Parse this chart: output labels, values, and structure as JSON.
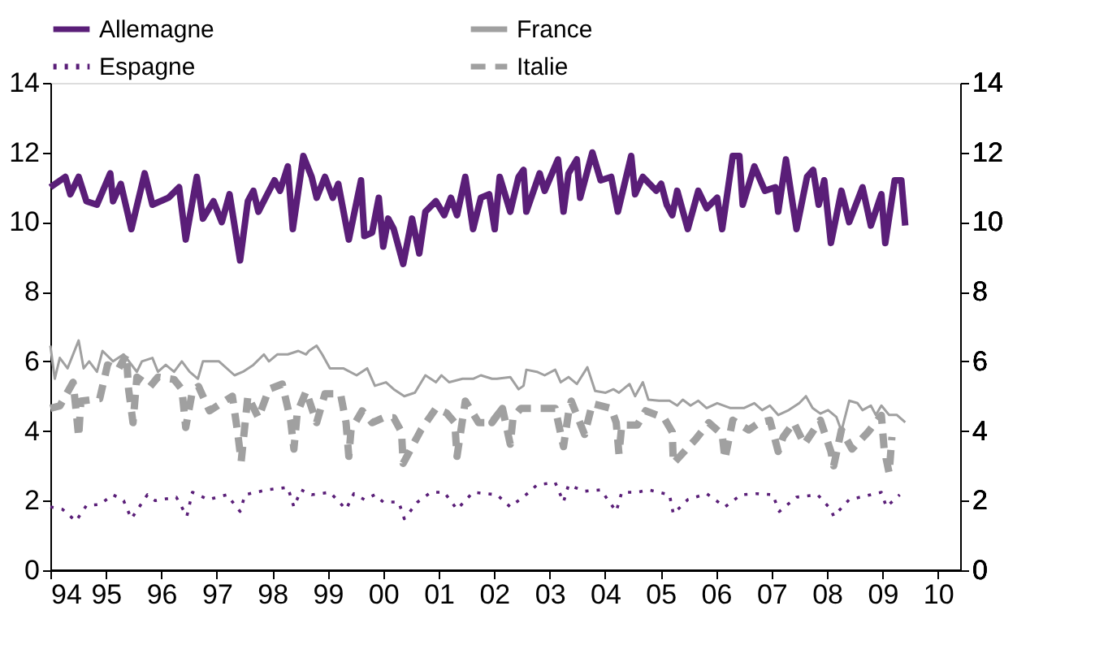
{
  "chart_data": {
    "type": "line",
    "xlim": [
      1994,
      2010.4
    ],
    "xticks": [
      {
        "value": 1994,
        "label": "94"
      },
      {
        "value": 1995,
        "label": "95"
      },
      {
        "value": 1996,
        "label": "96"
      },
      {
        "value": 1997,
        "label": "97"
      },
      {
        "value": 1998,
        "label": "98"
      },
      {
        "value": 1999,
        "label": "99"
      },
      {
        "value": 2000,
        "label": "00"
      },
      {
        "value": 2001,
        "label": "01"
      },
      {
        "value": 2002,
        "label": "02"
      },
      {
        "value": 2003,
        "label": "03"
      },
      {
        "value": 2004,
        "label": "04"
      },
      {
        "value": 2005,
        "label": "05"
      },
      {
        "value": 2006,
        "label": "06"
      },
      {
        "value": 2007,
        "label": "07"
      },
      {
        "value": 2008,
        "label": "08"
      },
      {
        "value": 2009,
        "label": "09"
      },
      {
        "value": 2010,
        "label": "10"
      }
    ],
    "ylim": [
      0,
      14
    ],
    "yticks": [
      0,
      2,
      4,
      6,
      8,
      10,
      12,
      14
    ],
    "y2lim": [
      0,
      14
    ],
    "y2ticks": [
      0,
      2,
      4,
      6,
      8,
      10,
      12,
      14
    ],
    "grid": false,
    "legend": "top",
    "marker": "none",
    "series": [
      {
        "name": "Allemagne",
        "color": "#5a1e78",
        "line_style": "solid",
        "x": [
          1994.0,
          1994.27,
          1994.36,
          1994.51,
          1994.65,
          1994.84,
          1995.08,
          1995.13,
          1995.27,
          1995.46,
          1995.7,
          1995.84,
          1996.13,
          1996.32,
          1996.44,
          1996.64,
          1996.75,
          1996.94,
          1997.09,
          1997.23,
          1997.42,
          1997.56,
          1997.66,
          1997.75,
          1998.04,
          1998.14,
          1998.28,
          1998.37,
          1998.56,
          1998.71,
          1998.8,
          1998.95,
          1999.09,
          1999.19,
          1999.38,
          1999.6,
          1999.66,
          1999.8,
          1999.92,
          2000.0,
          2000.09,
          2000.19,
          2000.36,
          2000.52,
          2000.65,
          2000.76,
          2000.95,
          2001.1,
          2001.22,
          2001.33,
          2001.48,
          2001.62,
          2001.76,
          2001.91,
          2002.01,
          2002.1,
          2002.29,
          2002.44,
          2002.53,
          2002.58,
          2002.82,
          2002.91,
          2003.15,
          2003.25,
          2003.34,
          2003.49,
          2003.55,
          2003.77,
          2003.92,
          2004.11,
          2004.23,
          2004.47,
          2004.54,
          2004.68,
          2004.92,
          2005.01,
          2005.11,
          2005.21,
          2005.3,
          2005.49,
          2005.68,
          2005.83,
          2006.02,
          2006.11,
          2006.3,
          2006.42,
          2006.48,
          2006.69,
          2006.88,
          2007.07,
          2007.12,
          2007.26,
          2007.45,
          2007.64,
          2007.75,
          2007.85,
          2007.95,
          2008.07,
          2008.26,
          2008.4,
          2008.64,
          2008.79,
          2008.98,
          2009.05,
          2009.22,
          2009.34,
          2009.41
        ],
        "values": [
          11.0,
          11.3,
          10.8,
          11.3,
          10.6,
          10.5,
          11.4,
          10.6,
          11.1,
          9.8,
          11.4,
          10.5,
          10.7,
          11.0,
          9.5,
          11.3,
          10.1,
          10.6,
          10.0,
          10.8,
          8.9,
          10.6,
          10.9,
          10.3,
          11.2,
          10.9,
          11.6,
          9.8,
          11.9,
          11.3,
          10.7,
          11.3,
          10.7,
          11.1,
          9.5,
          11.2,
          9.6,
          9.7,
          10.7,
          9.3,
          10.1,
          9.8,
          8.8,
          10.1,
          9.1,
          10.3,
          10.6,
          10.2,
          10.7,
          10.2,
          11.3,
          9.8,
          10.7,
          10.8,
          9.8,
          11.3,
          10.3,
          11.3,
          11.5,
          10.3,
          11.4,
          10.9,
          11.8,
          10.3,
          11.4,
          11.8,
          10.7,
          12.0,
          11.2,
          11.3,
          10.3,
          11.9,
          10.8,
          11.3,
          10.9,
          11.1,
          10.5,
          10.2,
          10.9,
          9.8,
          10.9,
          10.4,
          10.7,
          9.8,
          11.9,
          11.9,
          10.5,
          11.6,
          10.9,
          11.0,
          10.3,
          11.8,
          9.8,
          11.3,
          11.5,
          10.5,
          11.2,
          9.4,
          10.9,
          10.0,
          11.0,
          9.9,
          10.8,
          9.4,
          11.2,
          11.2,
          9.9
        ]
      },
      {
        "name": "France",
        "color": "#a0a0a0",
        "line_style": "solid",
        "x": [
          1994.0,
          1994.08,
          1994.17,
          1994.31,
          1994.51,
          1994.6,
          1994.7,
          1994.84,
          1994.94,
          1995.13,
          1995.32,
          1995.56,
          1995.65,
          1995.84,
          1995.94,
          1996.08,
          1996.23,
          1996.37,
          1996.51,
          1996.66,
          1996.75,
          1997.04,
          1997.32,
          1997.47,
          1997.66,
          1997.85,
          1997.94,
          1998.09,
          1998.28,
          1998.47,
          1998.61,
          1998.66,
          1998.8,
          1998.9,
          1999.04,
          1999.28,
          1999.52,
          1999.71,
          1999.85,
          2000.05,
          2000.19,
          2000.38,
          2000.57,
          2000.76,
          2000.95,
          2001.05,
          2001.19,
          2001.43,
          2001.62,
          2001.76,
          2001.96,
          2002.05,
          2002.29,
          2002.44,
          2002.53,
          2002.58,
          2002.77,
          2002.91,
          2003.1,
          2003.2,
          2003.34,
          2003.49,
          2003.68,
          2003.82,
          2004.01,
          2004.15,
          2004.25,
          2004.44,
          2004.54,
          2004.68,
          2004.78,
          2004.97,
          2005.16,
          2005.3,
          2005.4,
          2005.54,
          2005.68,
          2005.83,
          2006.02,
          2006.26,
          2006.5,
          2006.69,
          2006.83,
          2006.97,
          2007.12,
          2007.31,
          2007.5,
          2007.62,
          2007.74,
          2007.88,
          2008.02,
          2008.17,
          2008.26,
          2008.4,
          2008.55,
          2008.64,
          2008.79,
          2008.88,
          2008.98,
          2009.12,
          2009.26,
          2009.41
        ],
        "values": [
          6.45,
          5.5,
          6.1,
          5.8,
          6.6,
          5.8,
          6.0,
          5.7,
          6.3,
          6.0,
          6.2,
          5.7,
          6.0,
          6.1,
          5.7,
          5.9,
          5.7,
          6.0,
          5.7,
          5.5,
          6.0,
          6.0,
          5.6,
          5.7,
          5.9,
          6.2,
          6.0,
          6.2,
          6.2,
          6.3,
          6.2,
          6.3,
          6.45,
          6.2,
          5.8,
          5.8,
          5.6,
          5.8,
          5.3,
          5.4,
          5.2,
          5.0,
          5.1,
          5.6,
          5.4,
          5.6,
          5.4,
          5.5,
          5.5,
          5.6,
          5.5,
          5.5,
          5.55,
          5.2,
          5.3,
          5.76,
          5.7,
          5.6,
          5.76,
          5.4,
          5.55,
          5.35,
          5.83,
          5.15,
          5.1,
          5.2,
          5.1,
          5.35,
          5.0,
          5.4,
          4.9,
          4.87,
          4.87,
          4.73,
          4.9,
          4.73,
          4.87,
          4.66,
          4.8,
          4.66,
          4.66,
          4.8,
          4.6,
          4.73,
          4.46,
          4.6,
          4.8,
          5.0,
          4.66,
          4.5,
          4.6,
          4.4,
          4.0,
          4.87,
          4.8,
          4.6,
          4.73,
          4.46,
          4.73,
          4.46,
          4.46,
          4.25
        ]
      },
      {
        "name": "Espagne",
        "color": "#5a1e78",
        "line_style": "dotted",
        "x": [
          1994.0,
          1994.22,
          1994.46,
          1994.65,
          1994.89,
          1995.13,
          1995.32,
          1995.46,
          1995.75,
          1995.89,
          1996.27,
          1996.46,
          1996.56,
          1996.85,
          1997.18,
          1997.42,
          1997.51,
          1997.9,
          1998.28,
          1998.39,
          1998.52,
          1998.71,
          1999.04,
          1999.33,
          1999.47,
          1999.66,
          1999.85,
          2000.0,
          2000.28,
          2000.38,
          2000.62,
          2000.86,
          2001.1,
          2001.33,
          2001.62,
          2002.05,
          2002.29,
          2002.63,
          2002.77,
          2003.1,
          2003.25,
          2003.34,
          2003.63,
          2003.92,
          2004.2,
          2004.3,
          2004.58,
          2004.78,
          2005.16,
          2005.23,
          2005.49,
          2005.83,
          2006.16,
          2006.45,
          2006.73,
          2007.02,
          2007.14,
          2007.45,
          2007.83,
          2008.07,
          2008.12,
          2008.4,
          2008.6,
          2008.98,
          2009.07,
          2009.31
        ],
        "values": [
          1.82,
          1.75,
          1.41,
          1.86,
          1.89,
          2.17,
          2.0,
          1.48,
          2.17,
          2.0,
          2.1,
          1.55,
          2.24,
          2.03,
          2.17,
          1.69,
          2.17,
          2.31,
          2.38,
          1.82,
          2.31,
          2.17,
          2.24,
          1.75,
          2.2,
          2.03,
          2.17,
          1.96,
          1.96,
          1.48,
          1.96,
          2.24,
          2.24,
          1.75,
          2.24,
          2.17,
          1.82,
          2.24,
          2.45,
          2.52,
          1.96,
          2.45,
          2.27,
          2.31,
          1.69,
          2.24,
          2.24,
          2.31,
          2.17,
          1.62,
          2.03,
          2.2,
          1.82,
          2.17,
          2.2,
          2.17,
          1.69,
          2.1,
          2.17,
          1.75,
          1.55,
          2.03,
          2.1,
          2.24,
          1.82,
          2.17
        ]
      },
      {
        "name": "Italie",
        "color": "#a0a0a0",
        "line_style": "dashed",
        "x": [
          1994.0,
          1994.17,
          1994.41,
          1994.46,
          1994.51,
          1994.55,
          1994.89,
          1995.03,
          1995.22,
          1995.37,
          1995.41,
          1995.49,
          1995.56,
          1995.8,
          1995.94,
          1996.23,
          1996.37,
          1996.44,
          1996.56,
          1996.67,
          1996.87,
          1997.28,
          1997.37,
          1997.44,
          1997.56,
          1997.75,
          1997.94,
          1998.18,
          1998.33,
          1998.39,
          1998.45,
          1998.61,
          1998.8,
          1998.95,
          1999.23,
          1999.33,
          1999.38,
          1999.42,
          1999.62,
          1999.8,
          2000.0,
          2000.19,
          2000.33,
          2000.36,
          2000.68,
          2000.95,
          2001.14,
          2001.29,
          2001.33,
          2001.48,
          2001.72,
          2001.95,
          2002.15,
          2001.96,
          2002.15,
          2002.29,
          2002.34,
          2002.48,
          2002.77,
          2003.1,
          2003.25,
          2003.34,
          2003.39,
          2003.63,
          2003.77,
          2004.11,
          2004.2,
          2004.25,
          2004.3,
          2004.58,
          2004.73,
          2005.06,
          2005.21,
          2005.23,
          2005.63,
          2005.87,
          2006.11,
          2006.16,
          2006.3,
          2006.59,
          2006.78,
          2006.97,
          2007.12,
          2007.21,
          2007.4,
          2007.59,
          2007.88,
          2008.07,
          2008.12,
          2008.26,
          2008.45,
          2008.74,
          2008.98,
          2009.03,
          2009.12,
          2009.17
        ],
        "values": [
          4.65,
          4.72,
          5.4,
          4.65,
          3.83,
          4.86,
          4.93,
          5.9,
          5.76,
          6.2,
          5.2,
          4.24,
          5.55,
          5.28,
          5.55,
          5.48,
          5.2,
          4.1,
          5.14,
          5.28,
          4.58,
          5.0,
          4.03,
          3.13,
          5.0,
          4.38,
          5.2,
          5.35,
          4.31,
          3.48,
          4.52,
          5.14,
          4.24,
          5.07,
          5.07,
          4.24,
          3.27,
          4.03,
          4.58,
          4.24,
          4.38,
          4.38,
          3.97,
          3.07,
          4.03,
          4.65,
          4.52,
          4.24,
          3.27,
          4.86,
          4.24,
          4.24,
          4.65,
          4.24,
          4.65,
          3.62,
          4.38,
          4.65,
          4.65,
          4.65,
          3.55,
          4.52,
          4.86,
          3.9,
          4.79,
          4.65,
          4.24,
          3.34,
          4.17,
          4.17,
          4.58,
          4.38,
          3.97,
          3.07,
          3.76,
          4.24,
          3.9,
          3.2,
          4.31,
          4.03,
          4.24,
          4.31,
          3.41,
          3.83,
          4.24,
          3.62,
          4.31,
          3.41,
          3.0,
          4.03,
          3.48,
          3.97,
          4.45,
          3.48,
          2.79,
          3.83
        ]
      }
    ]
  }
}
